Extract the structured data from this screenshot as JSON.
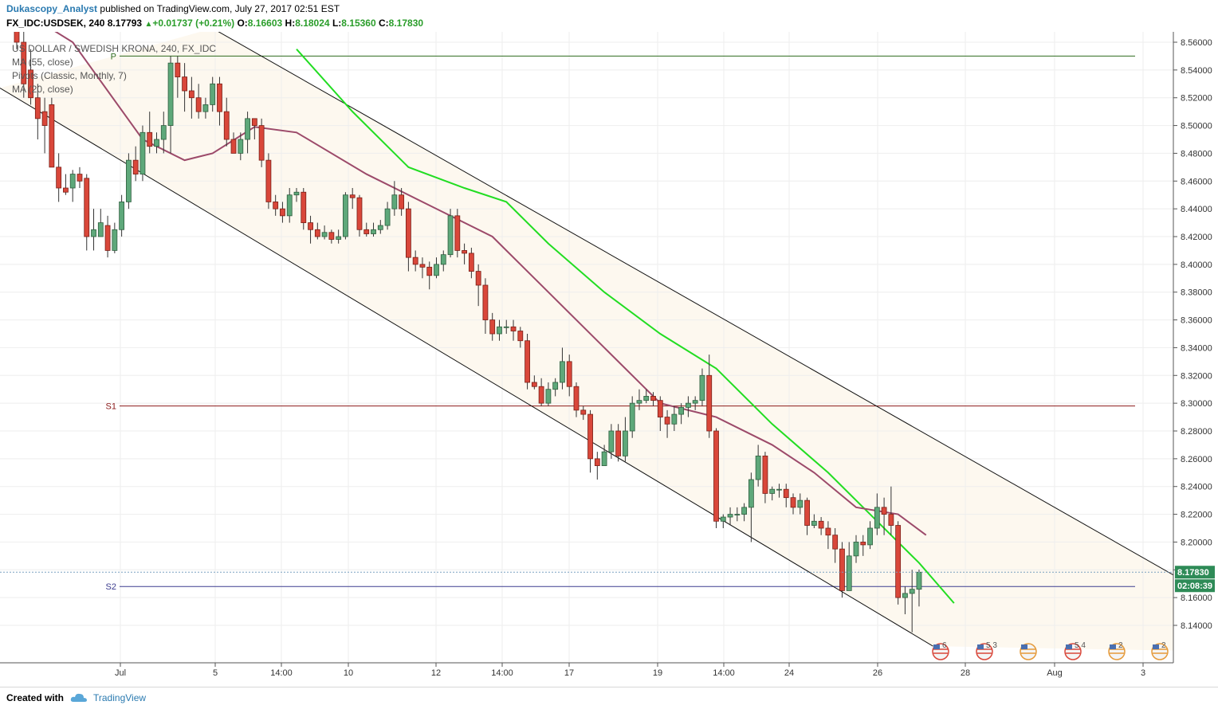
{
  "header": {
    "author": "Dukascopy_Analyst",
    "published": "published on TradingView.com, July 27, 2017 02:51 EST",
    "symbol": "FX_IDC:USDSEK, 240",
    "last": "8.17793",
    "change": "+0.01737 (+0.21%)",
    "o_label": "O:",
    "o_value": "8.16603",
    "h_label": "H:",
    "h_value": "8.18024",
    "l_label": "L:",
    "l_value": "8.15360",
    "c_label": "C:",
    "c_value": "8.17830",
    "colors": {
      "author": "#2a7ab0",
      "up": "#2a9d2a"
    }
  },
  "legend": {
    "title": "US DOLLAR / SWEDISH KRONA, 240, FX_IDC",
    "ma55": "MA (55, close)",
    "pivots": "Pivots (Classic, Monthly, 7)",
    "ma20": "MA (20, close)"
  },
  "footer": {
    "created": "Created with",
    "brand": "TradingView"
  },
  "chart_data": {
    "type": "candlestick",
    "ylim": [
      8.12,
      8.57
    ],
    "y_ticks": [
      "8.56000",
      "8.54000",
      "8.52000",
      "8.50000",
      "8.48000",
      "8.46000",
      "8.44000",
      "8.42000",
      "8.40000",
      "8.38000",
      "8.36000",
      "8.34000",
      "8.32000",
      "8.30000",
      "8.28000",
      "8.26000",
      "8.24000",
      "8.22000",
      "8.20000",
      "8.18000",
      "8.16000",
      "8.14000"
    ],
    "x_ticks": [
      "Jul",
      "5",
      "14:00",
      "10",
      "12",
      "14:00",
      "17",
      "19",
      "14:00",
      "24",
      "26",
      "28",
      "Aug",
      "3"
    ],
    "price_label": "8.17830",
    "countdown_label": "02:08:39",
    "pivots": [
      {
        "name": "P",
        "value": 8.55,
        "color": "#2e6b1e"
      },
      {
        "name": "S1",
        "value": 8.298,
        "color": "#8b1a1a"
      },
      {
        "name": "S2",
        "value": 8.168,
        "color": "#3d3d8f"
      }
    ],
    "candles": [
      [
        8.575,
        8.56,
        8.575,
        8.555
      ],
      [
        8.56,
        8.53,
        8.57,
        8.52
      ],
      [
        8.54,
        8.52,
        8.555,
        8.515
      ],
      [
        8.52,
        8.505,
        8.53,
        8.49
      ],
      [
        8.51,
        8.5,
        8.52,
        8.48
      ],
      [
        8.515,
        8.47,
        8.52,
        8.47
      ],
      [
        8.47,
        8.455,
        8.48,
        8.445
      ],
      [
        8.455,
        8.452,
        8.465,
        8.45
      ],
      [
        8.455,
        8.465,
        8.468,
        8.445
      ],
      [
        8.465,
        8.46,
        8.47,
        8.455
      ],
      [
        8.462,
        8.42,
        8.465,
        8.41
      ],
      [
        8.42,
        8.425,
        8.44,
        8.41
      ],
      [
        8.42,
        8.43,
        8.44,
        8.425
      ],
      [
        8.428,
        8.41,
        8.435,
        8.405
      ],
      [
        8.41,
        8.425,
        8.43,
        8.408
      ],
      [
        8.425,
        8.445,
        8.45,
        8.42
      ],
      [
        8.445,
        8.475,
        8.48,
        8.44
      ],
      [
        8.475,
        8.465,
        8.485,
        8.46
      ],
      [
        8.465,
        8.495,
        8.5,
        8.46
      ],
      [
        8.495,
        8.485,
        8.51,
        8.48
      ],
      [
        8.485,
        8.49,
        8.495,
        8.48
      ],
      [
        8.49,
        8.5,
        8.51,
        8.48
      ],
      [
        8.5,
        8.545,
        8.55,
        8.48
      ],
      [
        8.545,
        8.535,
        8.55,
        8.52
      ],
      [
        8.535,
        8.525,
        8.545,
        8.51
      ],
      [
        8.525,
        8.52,
        8.535,
        8.505
      ],
      [
        8.52,
        8.51,
        8.53,
        8.505
      ],
      [
        8.51,
        8.515,
        8.52,
        8.505
      ],
      [
        8.515,
        8.53,
        8.535,
        8.51
      ],
      [
        8.53,
        8.51,
        8.535,
        8.5
      ],
      [
        8.51,
        8.49,
        8.52,
        8.485
      ],
      [
        8.49,
        8.48,
        8.495,
        8.48
      ],
      [
        8.48,
        8.49,
        8.495,
        8.475
      ],
      [
        8.49,
        8.505,
        8.51,
        8.48
      ],
      [
        8.505,
        8.5,
        8.505,
        8.49
      ],
      [
        8.5,
        8.475,
        8.505,
        8.47
      ],
      [
        8.475,
        8.445,
        8.48,
        8.44
      ],
      [
        8.445,
        8.44,
        8.45,
        8.435
      ],
      [
        8.44,
        8.435,
        8.445,
        8.43
      ],
      [
        8.435,
        8.45,
        8.455,
        8.43
      ],
      [
        8.45,
        8.452,
        8.455,
        8.445
      ],
      [
        8.452,
        8.43,
        8.455,
        8.425
      ],
      [
        8.43,
        8.425,
        8.435,
        8.415
      ],
      [
        8.425,
        8.42,
        8.43,
        8.418
      ],
      [
        8.42,
        8.423,
        8.428,
        8.418
      ],
      [
        8.423,
        8.418,
        8.425,
        8.415
      ],
      [
        8.418,
        8.42,
        8.425,
        8.415
      ],
      [
        8.42,
        8.45,
        8.452,
        8.418
      ],
      [
        8.45,
        8.448,
        8.455,
        8.44
      ],
      [
        8.448,
        8.425,
        8.45,
        8.42
      ],
      [
        8.425,
        8.422,
        8.43,
        8.42
      ],
      [
        8.422,
        8.425,
        8.43,
        8.42
      ],
      [
        8.425,
        8.428,
        8.432,
        8.422
      ],
      [
        8.428,
        8.44,
        8.445,
        8.425
      ],
      [
        8.44,
        8.45,
        8.46,
        8.435
      ],
      [
        8.45,
        8.44,
        8.455,
        8.435
      ],
      [
        8.44,
        8.405,
        8.445,
        8.395
      ],
      [
        8.405,
        8.4,
        8.41,
        8.395
      ],
      [
        8.4,
        8.398,
        8.405,
        8.39
      ],
      [
        8.398,
        8.392,
        8.402,
        8.382
      ],
      [
        8.392,
        8.4,
        8.405,
        8.39
      ],
      [
        8.4,
        8.407,
        8.41,
        8.395
      ],
      [
        8.407,
        8.435,
        8.44,
        8.405
      ],
      [
        8.435,
        8.41,
        8.44,
        8.405
      ],
      [
        8.41,
        8.408,
        8.415,
        8.4
      ],
      [
        8.408,
        8.395,
        8.412,
        8.39
      ],
      [
        8.395,
        8.385,
        8.4,
        8.37
      ],
      [
        8.385,
        8.36,
        8.39,
        8.35
      ],
      [
        8.36,
        8.35,
        8.365,
        8.345
      ],
      [
        8.35,
        8.355,
        8.36,
        8.345
      ],
      [
        8.355,
        8.355,
        8.36,
        8.35
      ],
      [
        8.355,
        8.352,
        8.36,
        8.345
      ],
      [
        8.352,
        8.345,
        8.355,
        8.34
      ],
      [
        8.345,
        8.315,
        8.35,
        8.31
      ],
      [
        8.315,
        8.312,
        8.32,
        8.31
      ],
      [
        8.312,
        8.3,
        8.318,
        8.298
      ],
      [
        8.3,
        8.31,
        8.315,
        8.298
      ],
      [
        8.31,
        8.315,
        8.318,
        8.305
      ],
      [
        8.315,
        8.33,
        8.34,
        8.31
      ],
      [
        8.33,
        8.312,
        8.335,
        8.305
      ],
      [
        8.312,
        8.295,
        8.315,
        8.29
      ],
      [
        8.295,
        8.292,
        8.298,
        8.288
      ],
      [
        8.292,
        8.26,
        8.295,
        8.25
      ],
      [
        8.26,
        8.255,
        8.265,
        8.245
      ],
      [
        8.255,
        8.265,
        8.27,
        8.255
      ],
      [
        8.265,
        8.28,
        8.285,
        8.26
      ],
      [
        8.28,
        8.262,
        8.285,
        8.258
      ],
      [
        8.262,
        8.28,
        8.29,
        8.258
      ],
      [
        8.28,
        8.3,
        8.305,
        8.275
      ],
      [
        8.3,
        8.302,
        8.31,
        8.295
      ],
      [
        8.302,
        8.305,
        8.31,
        8.3
      ],
      [
        8.305,
        8.302,
        8.308,
        8.298
      ],
      [
        8.302,
        8.29,
        8.305,
        8.28
      ],
      [
        8.29,
        8.285,
        8.295,
        8.275
      ],
      [
        8.285,
        8.292,
        8.298,
        8.28
      ],
      [
        8.292,
        8.297,
        8.3,
        8.285
      ],
      [
        8.297,
        8.3,
        8.305,
        8.29
      ],
      [
        8.3,
        8.302,
        8.305,
        8.295
      ],
      [
        8.302,
        8.32,
        8.325,
        8.298
      ],
      [
        8.32,
        8.28,
        8.335,
        8.275
      ],
      [
        8.28,
        8.215,
        8.282,
        8.21
      ],
      [
        8.215,
        8.218,
        8.22,
        8.21
      ],
      [
        8.218,
        8.22,
        8.225,
        8.212
      ],
      [
        8.22,
        8.22,
        8.225,
        8.215
      ],
      [
        8.22,
        8.225,
        8.228,
        8.215
      ],
      [
        8.225,
        8.245,
        8.25,
        8.2
      ],
      [
        8.245,
        8.262,
        8.27,
        8.24
      ],
      [
        8.262,
        8.235,
        8.265,
        8.228
      ],
      [
        8.235,
        8.238,
        8.24,
        8.23
      ],
      [
        8.238,
        8.238,
        8.242,
        8.232
      ],
      [
        8.238,
        8.232,
        8.242,
        8.225
      ],
      [
        8.232,
        8.225,
        8.235,
        8.22
      ],
      [
        8.225,
        8.23,
        8.235,
        8.22
      ],
      [
        8.23,
        8.212,
        8.232,
        8.205
      ],
      [
        8.212,
        8.215,
        8.22,
        8.21
      ],
      [
        8.215,
        8.21,
        8.218,
        8.205
      ],
      [
        8.21,
        8.205,
        8.215,
        8.195
      ],
      [
        8.205,
        8.195,
        8.21,
        8.185
      ],
      [
        8.195,
        8.165,
        8.2,
        8.16
      ],
      [
        8.165,
        8.19,
        8.2,
        8.165
      ],
      [
        8.19,
        8.2,
        8.205,
        8.185
      ],
      [
        8.2,
        8.198,
        8.205,
        8.19
      ],
      [
        8.198,
        8.21,
        8.215,
        8.195
      ],
      [
        8.21,
        8.225,
        8.235,
        8.205
      ],
      [
        8.225,
        8.22,
        8.232,
        8.205
      ],
      [
        8.22,
        8.212,
        8.24,
        8.205
      ],
      [
        8.212,
        8.16,
        8.215,
        8.155
      ],
      [
        8.16,
        8.163,
        8.168,
        8.148
      ],
      [
        8.163,
        8.166,
        8.18,
        8.135
      ],
      [
        8.166,
        8.1783,
        8.1802,
        8.1536
      ]
    ],
    "ma20": [
      [
        0,
        8.585
      ],
      [
        8,
        8.56
      ],
      [
        18,
        8.49
      ],
      [
        24,
        8.475
      ],
      [
        28,
        8.48
      ],
      [
        34,
        8.499
      ],
      [
        40,
        8.495
      ],
      [
        50,
        8.465
      ],
      [
        60,
        8.44
      ],
      [
        68,
        8.42
      ],
      [
        76,
        8.38
      ],
      [
        84,
        8.34
      ],
      [
        92,
        8.3
      ],
      [
        100,
        8.29
      ],
      [
        108,
        8.27
      ],
      [
        114,
        8.25
      ],
      [
        120,
        8.225
      ],
      [
        126,
        8.22
      ],
      [
        130,
        8.205
      ]
    ],
    "ma55": [
      [
        40,
        8.555
      ],
      [
        48,
        8.51
      ],
      [
        56,
        8.47
      ],
      [
        64,
        8.455
      ],
      [
        70,
        8.445
      ],
      [
        76,
        8.415
      ],
      [
        84,
        8.38
      ],
      [
        92,
        8.35
      ],
      [
        100,
        8.325
      ],
      [
        108,
        8.285
      ],
      [
        116,
        8.25
      ],
      [
        122,
        8.22
      ],
      [
        129,
        8.185
      ],
      [
        134,
        8.156
      ]
    ],
    "channel_upper": [
      [
        28,
        8.57
      ],
      [
        185,
        8.12
      ]
    ],
    "channel_lower": [
      [
        0,
        8.527
      ],
      [
        131,
        8.125
      ]
    ],
    "events": [
      "6",
      "5 3",
      "",
      "5 4",
      "2",
      "2"
    ]
  }
}
